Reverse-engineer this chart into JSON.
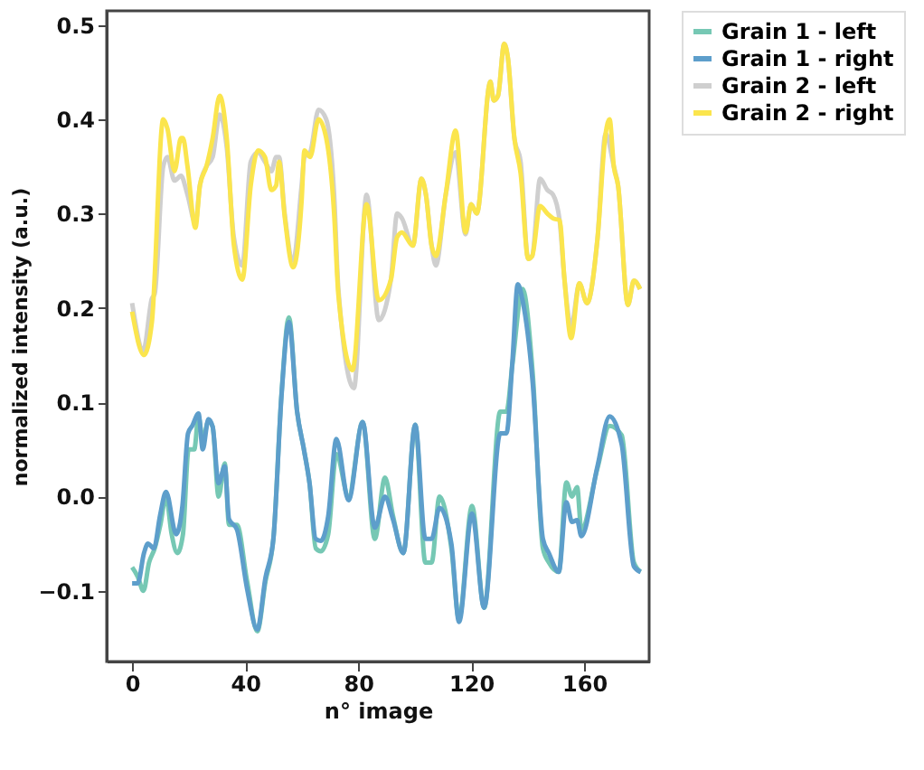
{
  "chart_data": {
    "type": "line",
    "xlabel": "n° image",
    "ylabel": "normalized intensity (a.u.)",
    "xlim": [
      -9,
      183
    ],
    "ylim": [
      -0.175,
      0.515
    ],
    "xticks": [
      0,
      40,
      80,
      120,
      160
    ],
    "yticks": [
      {
        "value": -0.1,
        "label": "−0.1"
      },
      {
        "value": 0,
        "label": "0.0"
      },
      0.1,
      0.2,
      0.3,
      0.4,
      0.5
    ],
    "grid": false,
    "legend": "top right",
    "marker": "none",
    "line_style": "solid",
    "series": [
      {
        "name": "Grain 1 - left",
        "color": "#76c8b4",
        "x": [
          0,
          2,
          4,
          6,
          8,
          10,
          12,
          14,
          16,
          18,
          20,
          22,
          23.5,
          25,
          27,
          28.5,
          30.6,
          32.8,
          34.3,
          37.1,
          40.7,
          44.3,
          47.2,
          50,
          52.9,
          55.5,
          58.4,
          60.8,
          62.8,
          65,
          66.8,
          69.4,
          72.3,
          76.6,
          81.6,
          85.9,
          89.5,
          92.3,
          96,
          100.2,
          103.8,
          106,
          108.8,
          113,
          115.7,
          120.3,
          124.6,
          130.3,
          132.5,
          134.6,
          138.2,
          141.8,
          145.4,
          147.5,
          151,
          153.7,
          155.7,
          157.5,
          159,
          164.7,
          169,
          173.3,
          177.6,
          180
        ],
        "values": [
          -0.075,
          -0.085,
          -0.1,
          -0.07,
          -0.055,
          -0.03,
          0.0,
          -0.04,
          -0.06,
          -0.04,
          0.05,
          0.05,
          0.085,
          0.06,
          0.08,
          0.074,
          0.0,
          0.035,
          -0.03,
          -0.03,
          -0.09,
          -0.143,
          -0.09,
          -0.045,
          0.11,
          0.19,
          0.09,
          0.05,
          0.014,
          -0.055,
          -0.058,
          -0.04,
          0.045,
          0.0,
          0.079,
          -0.045,
          0.02,
          -0.02,
          -0.06,
          0.076,
          -0.07,
          -0.07,
          0.0,
          -0.055,
          -0.13,
          -0.01,
          -0.118,
          0.09,
          0.09,
          0.14,
          0.22,
          0.13,
          -0.055,
          -0.07,
          -0.08,
          0.015,
          0.0,
          0.01,
          -0.035,
          0.03,
          0.075,
          0.065,
          -0.07,
          -0.08
        ]
      },
      {
        "name": "Grain 1 - right",
        "color": "#5d9ecb",
        "x": [
          0,
          2,
          4.2,
          5.6,
          7.7,
          9.9,
          12,
          15.6,
          17.8,
          19.8,
          21.3,
          23.5,
          25,
          27,
          28.5,
          30.6,
          32.8,
          34.3,
          37.1,
          40.7,
          44.3,
          47.2,
          50,
          52.9,
          55.5,
          58.4,
          60.8,
          62.8,
          65,
          66.8,
          69.4,
          72.3,
          76.6,
          81.6,
          85.9,
          89.5,
          92.3,
          96,
          100.2,
          103.8,
          106,
          108.8,
          113,
          115.7,
          120.3,
          124.6,
          130.3,
          132.5,
          134.6,
          136.5,
          138.2,
          141.8,
          145.4,
          147.5,
          151,
          153.7,
          155.7,
          157.5,
          159,
          164.7,
          169,
          173.3,
          177.6,
          180
        ],
        "values": [
          -0.092,
          -0.092,
          -0.06,
          -0.05,
          -0.055,
          -0.02,
          0.005,
          -0.04,
          -0.01,
          0.067,
          0.075,
          0.088,
          0.05,
          0.082,
          0.074,
          0.014,
          0.032,
          -0.024,
          -0.035,
          -0.098,
          -0.141,
          -0.086,
          -0.045,
          0.108,
          0.185,
          0.09,
          0.05,
          0.014,
          -0.045,
          -0.047,
          -0.021,
          0.061,
          -0.004,
          0.079,
          -0.033,
          0.0,
          -0.024,
          -0.06,
          0.076,
          -0.045,
          -0.045,
          -0.012,
          -0.05,
          -0.133,
          -0.018,
          -0.118,
          0.067,
          0.067,
          0.143,
          0.225,
          0.208,
          0.12,
          -0.045,
          -0.06,
          -0.08,
          -0.006,
          -0.027,
          -0.025,
          -0.042,
          0.032,
          0.085,
          0.055,
          -0.074,
          -0.08
        ]
      },
      {
        "name": "Grain 2 - left",
        "color": "#cfcfcf",
        "x": [
          0,
          4,
          7,
          8,
          11,
          12.5,
          15,
          17.3,
          19.6,
          22.4,
          24,
          26.3,
          28.5,
          31,
          33.5,
          36,
          39,
          42,
          44.6,
          47,
          49.3,
          51,
          52,
          54,
          57,
          60,
          61,
          63,
          66,
          68.7,
          71.5,
          73,
          78.5,
          83,
          87.3,
          91.6,
          93.8,
          95.5,
          99.4,
          102.4,
          104,
          106,
          107.5,
          111,
          114.5,
          118,
          120,
          122,
          126.8,
          128,
          129.5,
          131.7,
          133,
          135.3,
          137.5,
          140.2,
          141.6,
          144.4,
          147,
          149,
          151.3,
          153,
          155.4,
          158.3,
          161,
          164.7,
          167.6,
          170.5,
          172,
          175.5,
          177.6,
          179.8
        ],
        "values": [
          0.205,
          0.155,
          0.21,
          0.215,
          0.35,
          0.36,
          0.335,
          0.34,
          0.32,
          0.29,
          0.33,
          0.35,
          0.36,
          0.405,
          0.37,
          0.275,
          0.245,
          0.355,
          0.365,
          0.355,
          0.345,
          0.36,
          0.36,
          0.3,
          0.25,
          0.33,
          0.36,
          0.365,
          0.41,
          0.4,
          0.32,
          0.22,
          0.115,
          0.32,
          0.187,
          0.23,
          0.3,
          0.295,
          0.266,
          0.337,
          0.32,
          0.266,
          0.245,
          0.32,
          0.365,
          0.278,
          0.31,
          0.3,
          0.44,
          0.42,
          0.425,
          0.48,
          0.465,
          0.38,
          0.355,
          0.252,
          0.255,
          0.337,
          0.325,
          0.32,
          0.293,
          0.231,
          0.18,
          0.226,
          0.205,
          0.273,
          0.385,
          0.35,
          0.33,
          0.203,
          0.229,
          0.22
        ]
      },
      {
        "name": "Grain 2 - right",
        "color": "#fbe54d",
        "x": [
          0,
          4.2,
          7,
          11,
          12.5,
          15,
          17.3,
          18,
          19.6,
          22.4,
          24,
          26.3,
          28.5,
          31,
          33.5,
          36,
          39,
          42,
          44.6,
          47,
          49.3,
          51,
          52,
          54,
          57,
          60,
          61,
          63,
          66,
          68.7,
          71.5,
          73,
          78,
          83,
          87.3,
          91.6,
          93.8,
          95.5,
          99.4,
          102.4,
          104,
          106,
          107.5,
          111,
          114.5,
          118,
          120,
          122,
          126.8,
          128,
          129.5,
          131.7,
          133,
          135.3,
          137.5,
          140.2,
          141.6,
          144.4,
          147,
          149,
          151.3,
          153,
          155.4,
          158.3,
          161,
          164.7,
          167.6,
          169,
          170.5,
          172,
          175.5,
          177.6,
          179.8
        ],
        "values": [
          0.196,
          0.15,
          0.185,
          0.4,
          0.39,
          0.345,
          0.38,
          0.38,
          0.35,
          0.285,
          0.33,
          0.35,
          0.38,
          0.425,
          0.38,
          0.267,
          0.23,
          0.33,
          0.367,
          0.36,
          0.325,
          0.33,
          0.355,
          0.297,
          0.243,
          0.314,
          0.367,
          0.36,
          0.4,
          0.38,
          0.3,
          0.214,
          0.134,
          0.31,
          0.208,
          0.23,
          0.275,
          0.28,
          0.266,
          0.337,
          0.32,
          0.266,
          0.255,
          0.32,
          0.388,
          0.28,
          0.31,
          0.3,
          0.44,
          0.42,
          0.425,
          0.48,
          0.465,
          0.38,
          0.343,
          0.252,
          0.255,
          0.308,
          0.3,
          0.295,
          0.293,
          0.231,
          0.168,
          0.226,
          0.205,
          0.273,
          0.385,
          0.4,
          0.35,
          0.33,
          0.203,
          0.229,
          0.22
        ]
      }
    ]
  }
}
